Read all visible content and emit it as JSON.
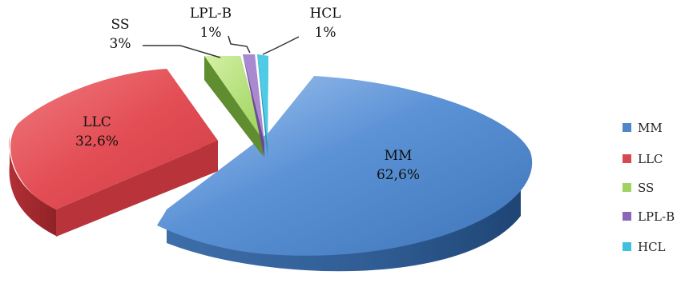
{
  "chart_data": {
    "type": "pie",
    "style": "3d exploded",
    "slices": [
      {
        "name": "MM",
        "label": "62,6%",
        "value": 62.6,
        "color": "#4f86c8"
      },
      {
        "name": "LLC",
        "label": "32,6%",
        "value": 32.6,
        "color": "#d9484f"
      },
      {
        "name": "SS",
        "label": "3%",
        "value": 3,
        "color": "#9fd35f"
      },
      {
        "name": "LPL-B",
        "label": "1%",
        "value": 1,
        "color": "#8a67b8"
      },
      {
        "name": "HCL",
        "label": "1%",
        "value": 1,
        "color": "#3fc0dd"
      }
    ],
    "legend_position": "right"
  }
}
